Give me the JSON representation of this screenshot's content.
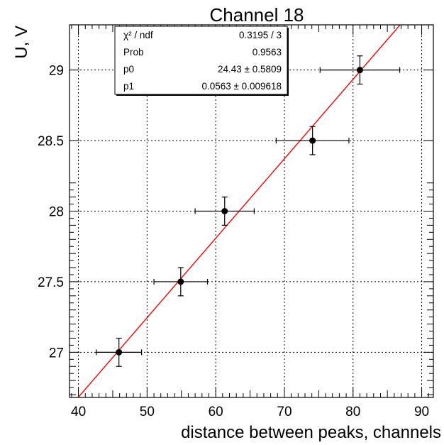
{
  "chart_data": {
    "type": "scatter",
    "title": "Channel 18",
    "xlabel": "distance between peaks, channels",
    "ylabel": "U, V",
    "xlim": [
      38.7,
      91.7
    ],
    "ylim": [
      26.68,
      29.32
    ],
    "x_ticks": [
      "40",
      "50",
      "60",
      "70",
      "80",
      "90"
    ],
    "x_tick_values": [
      40,
      50,
      60,
      70,
      80,
      90
    ],
    "y_ticks": [
      "27",
      "27.5",
      "28",
      "28.5",
      "29"
    ],
    "y_tick_values": [
      27,
      27.5,
      28,
      28.5,
      29
    ],
    "grid": true,
    "points": [
      {
        "x": 45.9,
        "y": 27.0,
        "xerr": 3.3,
        "yerr": 0.1
      },
      {
        "x": 54.9,
        "y": 27.5,
        "xerr": 3.9,
        "yerr": 0.1
      },
      {
        "x": 61.3,
        "y": 28.0,
        "xerr": 4.3,
        "yerr": 0.1
      },
      {
        "x": 74.1,
        "y": 28.5,
        "xerr": 5.3,
        "yerr": 0.1
      },
      {
        "x": 81.0,
        "y": 29.0,
        "xerr": 5.8,
        "yerr": 0.1
      }
    ],
    "fit": {
      "intercept": 24.43,
      "slope": 0.0563,
      "color": "#ff0000"
    },
    "marker_color": "#000000",
    "stats_box": {
      "position": "top-left",
      "rows": [
        {
          "label": "χ² / ndf",
          "value": "0.3195 / 3"
        },
        {
          "label": "Prob",
          "value": "0.9563"
        },
        {
          "label": "p0",
          "value": "24.43 ± 0.5809"
        },
        {
          "label": "p1",
          "value": "0.0563 ± 0.009618"
        }
      ]
    }
  }
}
